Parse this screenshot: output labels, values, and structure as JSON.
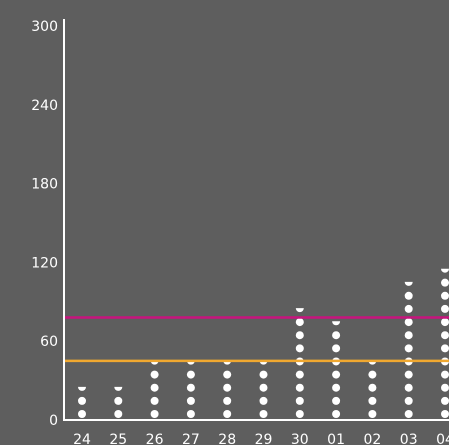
{
  "chart_data": {
    "type": "scatter",
    "categories": [
      "24",
      "25",
      "26",
      "27",
      "28",
      "29",
      "30",
      "01",
      "02",
      "03",
      "04"
    ],
    "values": [
      25,
      22,
      45,
      45,
      45,
      45,
      84,
      77,
      45,
      104,
      117
    ],
    "dot_unit": 10,
    "ylim": [
      0,
      300
    ],
    "y_ticks": [
      "0",
      "60",
      "120",
      "180",
      "240",
      "300"
    ],
    "reference_lines": [
      {
        "value": 78,
        "color": "#c8147e"
      },
      {
        "value": 45,
        "color": "#f0a830"
      }
    ],
    "colors": {
      "background": "#5e5e5e",
      "axis": "#ffffff",
      "dots": "#ffffff"
    },
    "grid": false,
    "title": "",
    "xlabel": "",
    "ylabel": ""
  }
}
